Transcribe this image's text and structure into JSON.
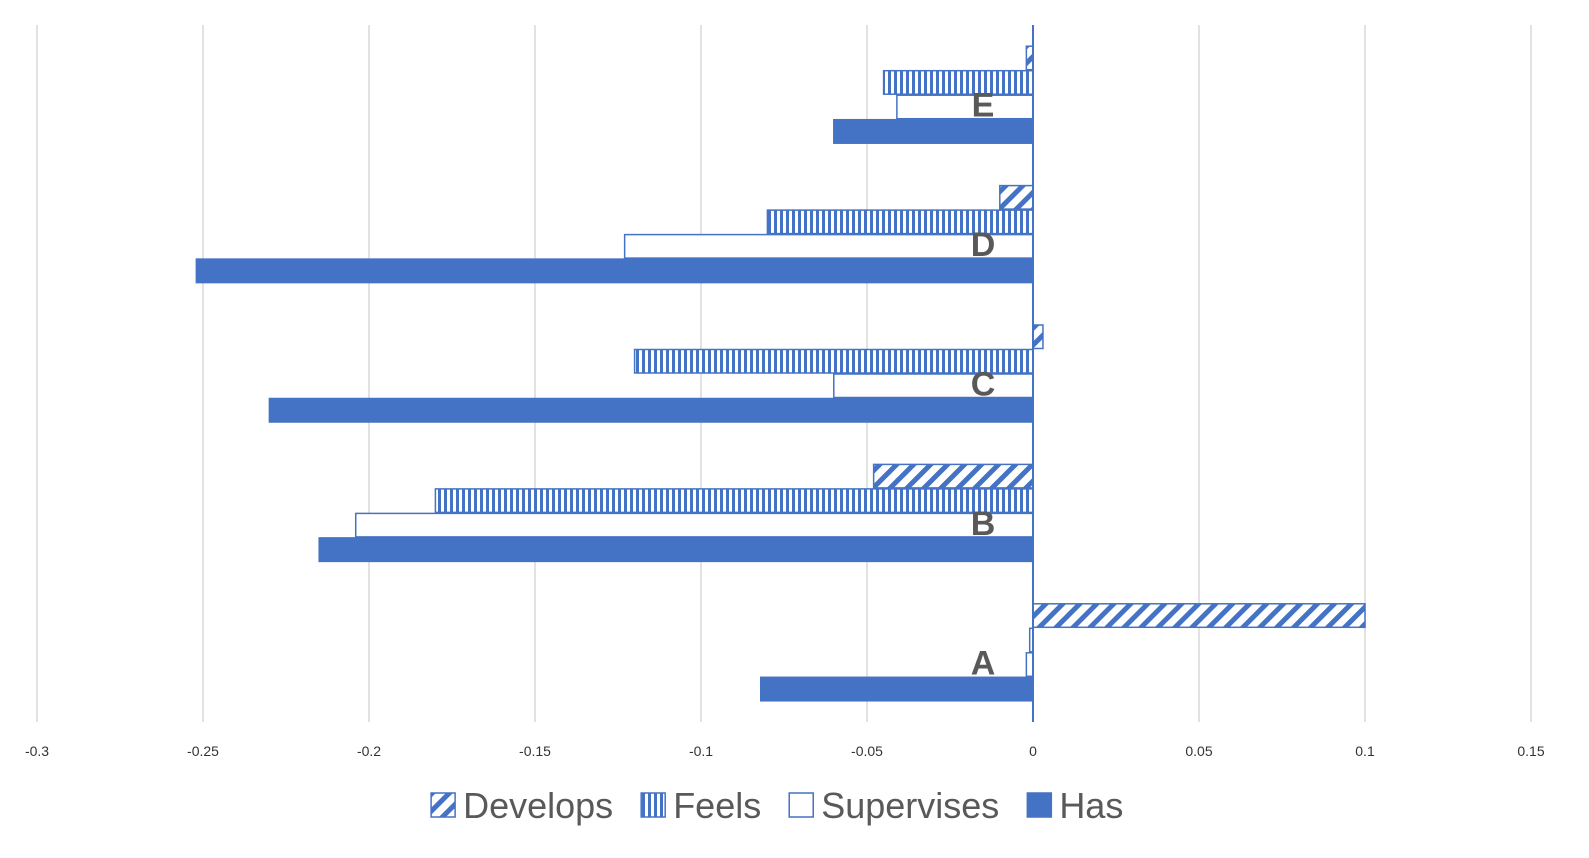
{
  "chart_data": {
    "type": "bar",
    "orientation": "horizontal",
    "title": "",
    "xlabel": "",
    "ylabel": "",
    "xlim": [
      -0.3,
      0.15
    ],
    "xticks": [
      -0.3,
      -0.25,
      -0.2,
      -0.15,
      -0.1,
      -0.05,
      0,
      0.05,
      0.1,
      0.15
    ],
    "xtick_labels": [
      "-0.3",
      "-0.25",
      "-0.2",
      "-0.15",
      "-0.1",
      "-0.05",
      "0",
      "0.05",
      "0.1",
      "0.15"
    ],
    "grid": true,
    "legend_position": "bottom",
    "categories": [
      "A",
      "B",
      "C",
      "D",
      "E"
    ],
    "series": [
      {
        "name": "Develops",
        "pattern": "diagonal",
        "values": [
          0.1,
          -0.048,
          0.003,
          -0.01,
          -0.002
        ]
      },
      {
        "name": "Feels",
        "pattern": "vertical",
        "values": [
          -0.001,
          -0.18,
          -0.12,
          -0.08,
          -0.045
        ]
      },
      {
        "name": "Supervises",
        "pattern": "hollow",
        "values": [
          -0.002,
          -0.204,
          -0.06,
          -0.123,
          -0.041
        ]
      },
      {
        "name": "Has",
        "pattern": "solid",
        "values": [
          -0.082,
          -0.215,
          -0.23,
          -0.252,
          -0.06
        ]
      }
    ],
    "colors": {
      "bar": "#4472c4",
      "grid": "#d9d9d9",
      "text": "#595959",
      "tick_text": "#333333"
    }
  }
}
